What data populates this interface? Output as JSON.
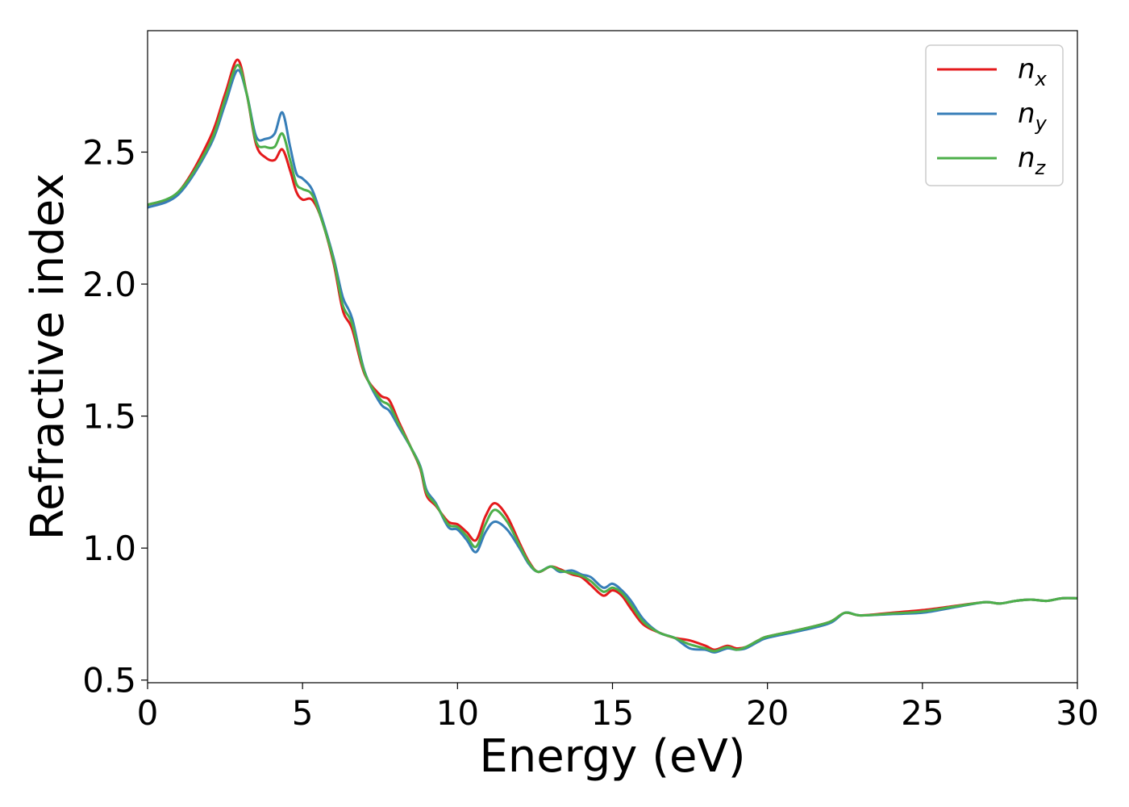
{
  "chart_data": {
    "type": "line",
    "xlabel": "Energy (eV)",
    "ylabel": "Refractive index",
    "xlim": [
      0,
      30
    ],
    "ylim": [
      0.49,
      2.96
    ],
    "xticks": [
      0,
      5,
      10,
      15,
      20,
      25,
      30
    ],
    "xtick_labels": [
      "0",
      "5",
      "10",
      "15",
      "20",
      "25",
      "30"
    ],
    "yticks": [
      0.5,
      1.0,
      1.5,
      2.0,
      2.5
    ],
    "ytick_labels": [
      "0.5",
      "1.0",
      "1.5",
      "2.0",
      "2.5"
    ],
    "grid": false,
    "legend_position": "top-right",
    "series": [
      {
        "name": "n_x",
        "legend_base": "n",
        "legend_sub": "x",
        "color": "#e41a1c",
        "x": [
          0,
          1,
          2,
          2.5,
          2.9,
          3.2,
          3.5,
          3.8,
          4.1,
          4.35,
          4.6,
          4.8,
          5.0,
          5.3,
          5.6,
          6.0,
          6.3,
          6.6,
          7.0,
          7.5,
          7.8,
          8.1,
          8.5,
          8.8,
          9.0,
          9.3,
          9.7,
          10.0,
          10.3,
          10.6,
          10.9,
          11.2,
          11.6,
          12.0,
          12.3,
          12.6,
          13.0,
          13.3,
          13.7,
          14.0,
          14.3,
          14.7,
          15.0,
          15.3,
          15.6,
          16.0,
          16.5,
          17.0,
          17.5,
          18.0,
          18.3,
          18.7,
          19.0,
          19.3,
          19.7,
          20.0,
          21.0,
          22.0,
          22.5,
          23.0,
          24.0,
          25.0,
          26.0,
          27.0,
          27.5,
          28.0,
          28.5,
          29.0,
          29.5,
          30.0
        ],
        "y": [
          2.3,
          2.35,
          2.55,
          2.72,
          2.85,
          2.72,
          2.53,
          2.48,
          2.47,
          2.51,
          2.43,
          2.35,
          2.32,
          2.32,
          2.25,
          2.08,
          1.9,
          1.83,
          1.66,
          1.58,
          1.56,
          1.48,
          1.38,
          1.3,
          1.2,
          1.16,
          1.1,
          1.09,
          1.06,
          1.03,
          1.12,
          1.17,
          1.12,
          1.02,
          0.95,
          0.91,
          0.93,
          0.92,
          0.9,
          0.89,
          0.86,
          0.82,
          0.84,
          0.82,
          0.77,
          0.71,
          0.68,
          0.66,
          0.65,
          0.63,
          0.615,
          0.63,
          0.62,
          0.625,
          0.65,
          0.665,
          0.69,
          0.72,
          0.755,
          0.745,
          0.755,
          0.765,
          0.78,
          0.795,
          0.79,
          0.8,
          0.805,
          0.8,
          0.81,
          0.81
        ]
      },
      {
        "name": "n_y",
        "legend_base": "n",
        "legend_sub": "y",
        "color": "#377eb8",
        "x": [
          0,
          1,
          2,
          2.5,
          2.9,
          3.2,
          3.5,
          3.8,
          4.1,
          4.35,
          4.6,
          4.8,
          5.0,
          5.3,
          5.6,
          6.0,
          6.3,
          6.6,
          7.0,
          7.5,
          7.8,
          8.1,
          8.5,
          8.8,
          9.0,
          9.3,
          9.7,
          10.0,
          10.3,
          10.6,
          10.9,
          11.2,
          11.6,
          12.0,
          12.3,
          12.6,
          13.0,
          13.3,
          13.7,
          14.0,
          14.3,
          14.7,
          15.0,
          15.3,
          15.6,
          16.0,
          16.5,
          17.0,
          17.5,
          18.0,
          18.3,
          18.7,
          19.0,
          19.3,
          19.7,
          20.0,
          21.0,
          22.0,
          22.5,
          23.0,
          24.0,
          25.0,
          26.0,
          27.0,
          27.5,
          28.0,
          28.5,
          29.0,
          29.5,
          30.0
        ],
        "y": [
          2.29,
          2.34,
          2.52,
          2.68,
          2.81,
          2.72,
          2.56,
          2.55,
          2.57,
          2.65,
          2.52,
          2.42,
          2.4,
          2.36,
          2.26,
          2.1,
          1.95,
          1.87,
          1.67,
          1.55,
          1.52,
          1.46,
          1.38,
          1.31,
          1.22,
          1.17,
          1.08,
          1.07,
          1.03,
          0.985,
          1.06,
          1.1,
          1.07,
          1.0,
          0.94,
          0.91,
          0.93,
          0.91,
          0.915,
          0.9,
          0.89,
          0.85,
          0.865,
          0.84,
          0.8,
          0.73,
          0.68,
          0.66,
          0.62,
          0.615,
          0.605,
          0.62,
          0.615,
          0.62,
          0.645,
          0.66,
          0.685,
          0.715,
          0.755,
          0.745,
          0.75,
          0.755,
          0.775,
          0.795,
          0.79,
          0.8,
          0.805,
          0.8,
          0.81,
          0.81
        ]
      },
      {
        "name": "n_z",
        "legend_base": "n",
        "legend_sub": "z",
        "color": "#4daf4a",
        "x": [
          0,
          1,
          2,
          2.5,
          2.9,
          3.2,
          3.5,
          3.8,
          4.1,
          4.35,
          4.6,
          4.8,
          5.0,
          5.3,
          5.6,
          6.0,
          6.3,
          6.6,
          7.0,
          7.5,
          7.8,
          8.1,
          8.5,
          8.8,
          9.0,
          9.3,
          9.7,
          10.0,
          10.3,
          10.6,
          10.9,
          11.2,
          11.6,
          12.0,
          12.3,
          12.6,
          13.0,
          13.3,
          13.7,
          14.0,
          14.3,
          14.7,
          15.0,
          15.3,
          15.6,
          16.0,
          16.5,
          17.0,
          17.5,
          18.0,
          18.3,
          18.7,
          19.0,
          19.3,
          19.7,
          20.0,
          21.0,
          22.0,
          22.5,
          23.0,
          24.0,
          25.0,
          26.0,
          27.0,
          27.5,
          28.0,
          28.5,
          29.0,
          29.5,
          30.0
        ],
        "y": [
          2.3,
          2.35,
          2.53,
          2.7,
          2.83,
          2.72,
          2.54,
          2.52,
          2.52,
          2.57,
          2.47,
          2.38,
          2.36,
          2.34,
          2.25,
          2.09,
          1.92,
          1.85,
          1.665,
          1.565,
          1.54,
          1.47,
          1.38,
          1.305,
          1.21,
          1.165,
          1.09,
          1.08,
          1.045,
          1.005,
          1.09,
          1.145,
          1.1,
          1.01,
          0.945,
          0.91,
          0.93,
          0.915,
          0.905,
          0.895,
          0.875,
          0.835,
          0.85,
          0.83,
          0.785,
          0.72,
          0.68,
          0.66,
          0.635,
          0.62,
          0.61,
          0.625,
          0.615,
          0.625,
          0.65,
          0.665,
          0.69,
          0.72,
          0.755,
          0.745,
          0.752,
          0.76,
          0.778,
          0.795,
          0.79,
          0.8,
          0.805,
          0.8,
          0.81,
          0.81
        ]
      }
    ]
  }
}
